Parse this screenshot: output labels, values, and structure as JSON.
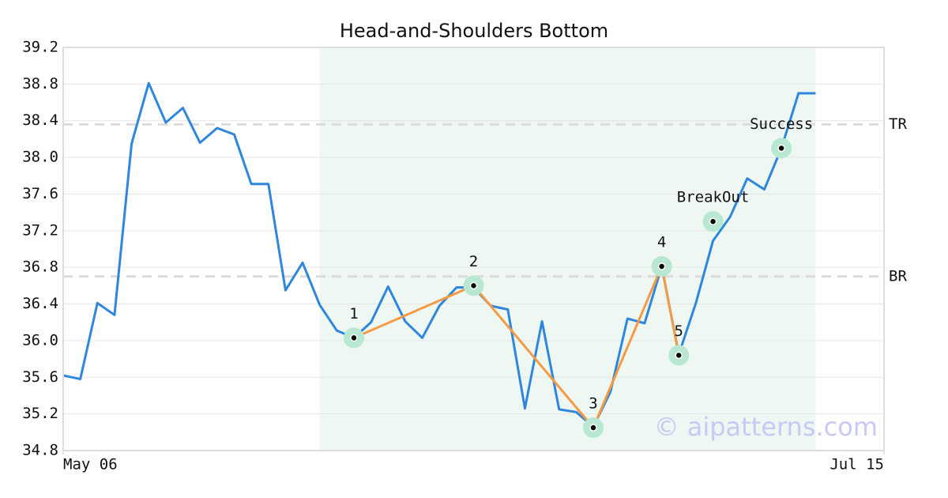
{
  "chart_data": {
    "type": "line",
    "title": "Head-and-Shoulders Bottom",
    "x": [
      0,
      1,
      2,
      3,
      4,
      5,
      6,
      7,
      8,
      9,
      10,
      11,
      12,
      13,
      14,
      15,
      16,
      17,
      18,
      19,
      20,
      21,
      22,
      23,
      24,
      25,
      26,
      27,
      28,
      29,
      30,
      31,
      32,
      33,
      34,
      35,
      36,
      37,
      38,
      39,
      40,
      41,
      42,
      43,
      44
    ],
    "xlim": [
      0,
      48
    ],
    "xticks": [
      {
        "value": 0,
        "label": "May 06"
      },
      {
        "value": 48,
        "label": "Jul 15"
      }
    ],
    "ylim": [
      34.8,
      39.2
    ],
    "yticks": [
      34.8,
      35.2,
      35.6,
      {
        "value": 36.0,
        "label": "36.0"
      },
      36.4,
      36.8,
      37.2,
      37.6,
      {
        "value": 38.0,
        "label": "38.0"
      },
      38.4,
      38.8,
      39.2
    ],
    "grid": true,
    "series": [
      {
        "color": "#2f86dd",
        "values": [
          35.62,
          35.58,
          36.41,
          36.28,
          38.15,
          38.81,
          38.38,
          38.54,
          38.16,
          38.32,
          38.25,
          37.71,
          37.71,
          36.55,
          36.85,
          36.39,
          36.11,
          36.03,
          36.2,
          36.59,
          36.21,
          36.03,
          36.38,
          36.58,
          36.58,
          36.38,
          36.34,
          35.26,
          36.21,
          35.25,
          35.22,
          35.06,
          35.44,
          36.24,
          36.19,
          36.81,
          35.85,
          36.41,
          37.09,
          37.35,
          37.77,
          37.65,
          38.1,
          38.7,
          38.7
        ]
      }
    ],
    "pattern": {
      "color": "#f59a45",
      "x": [
        17,
        24,
        31,
        35,
        36
      ],
      "values": [
        36.03,
        36.6,
        35.05,
        36.81,
        35.84
      ],
      "labels": [
        "1",
        "2",
        "3",
        "4",
        "5"
      ]
    },
    "signals": [
      {
        "label": "BreakOut",
        "x": 38,
        "value": 37.3
      },
      {
        "label": "Success",
        "x": 42,
        "value": 38.1
      }
    ],
    "hlines": [
      {
        "label": "TR",
        "value": 38.36
      },
      {
        "label": "BR",
        "value": 36.7
      }
    ],
    "highlight": [
      15,
      44
    ],
    "watermark": "© aipatterns.com"
  }
}
